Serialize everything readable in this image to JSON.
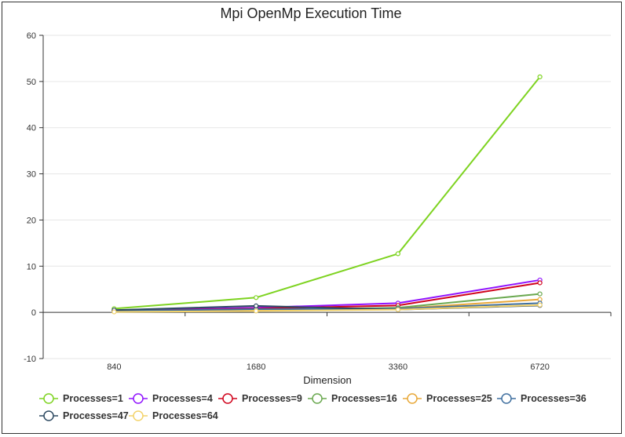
{
  "chart_data": {
    "type": "line",
    "title": "Mpi OpenMp Execution Time",
    "xlabel": "Dimension",
    "ylabel": "",
    "categories": [
      "840",
      "1680",
      "3360",
      "6720"
    ],
    "ylim": [
      -10,
      60
    ],
    "yticks": [
      -10,
      0,
      10,
      20,
      30,
      40,
      50,
      60
    ],
    "grid": true,
    "legend_position": "bottom",
    "series": [
      {
        "name": "Processes=1",
        "color": "#7ed321",
        "values": [
          0.8,
          3.2,
          12.7,
          51.0
        ]
      },
      {
        "name": "Processes=4",
        "color": "#9013fe",
        "values": [
          0.4,
          1.0,
          2.0,
          7.0
        ]
      },
      {
        "name": "Processes=9",
        "color": "#d0021b",
        "values": [
          0.3,
          0.8,
          1.5,
          6.4
        ]
      },
      {
        "name": "Processes=16",
        "color": "#6aa84f",
        "values": [
          0.2,
          0.5,
          1.0,
          4.0
        ]
      },
      {
        "name": "Processes=25",
        "color": "#e8a838",
        "values": [
          0.2,
          0.4,
          0.8,
          2.8
        ]
      },
      {
        "name": "Processes=36",
        "color": "#3f6f9f",
        "values": [
          0.3,
          0.7,
          0.8,
          2.0
        ]
      },
      {
        "name": "Processes=47",
        "color": "#2e4a62",
        "values": [
          0.5,
          1.4,
          0.6,
          1.5
        ]
      },
      {
        "name": "Processes=64",
        "color": "#f3d36b",
        "values": [
          0.1,
          0.3,
          0.6,
          1.6
        ]
      }
    ]
  }
}
